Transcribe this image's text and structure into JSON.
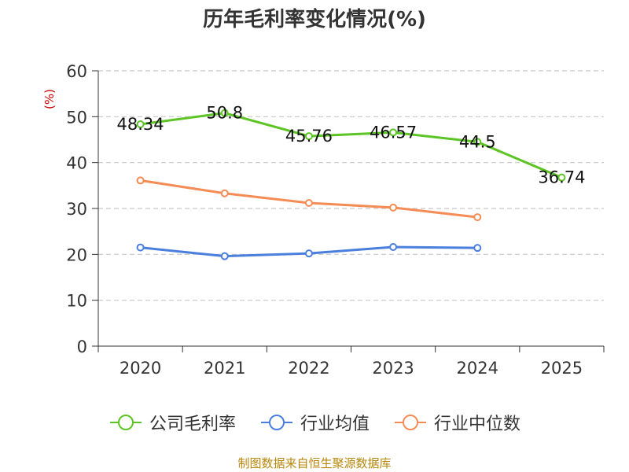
{
  "chart_data": {
    "type": "line",
    "title": "历年毛利率变化情况(%)",
    "ylabel": "(%)",
    "xlabel": "",
    "ylim": [
      0,
      60
    ],
    "yticks": [
      0,
      10,
      20,
      30,
      40,
      50,
      60
    ],
    "categories": [
      "2020",
      "2021",
      "2022",
      "2023",
      "2024",
      "2025"
    ],
    "grid": true,
    "legend_position": "bottom",
    "series": [
      {
        "name": "公司毛利率",
        "color": "#5cc424",
        "values": [
          48.34,
          50.8,
          45.76,
          46.57,
          44.5,
          36.74
        ],
        "labels": [
          "48.34",
          "50.8",
          "45.76",
          "46.57",
          "44.5",
          "36.74"
        ]
      },
      {
        "name": "行业均值",
        "color": "#4a7fde",
        "values": [
          21.5,
          19.6,
          20.2,
          21.6,
          21.4,
          null
        ]
      },
      {
        "name": "行业中位数",
        "color": "#f58c55",
        "values": [
          36.1,
          33.3,
          31.2,
          30.2,
          28.1,
          null
        ]
      }
    ],
    "source": "制图数据来自恒生聚源数据库"
  }
}
